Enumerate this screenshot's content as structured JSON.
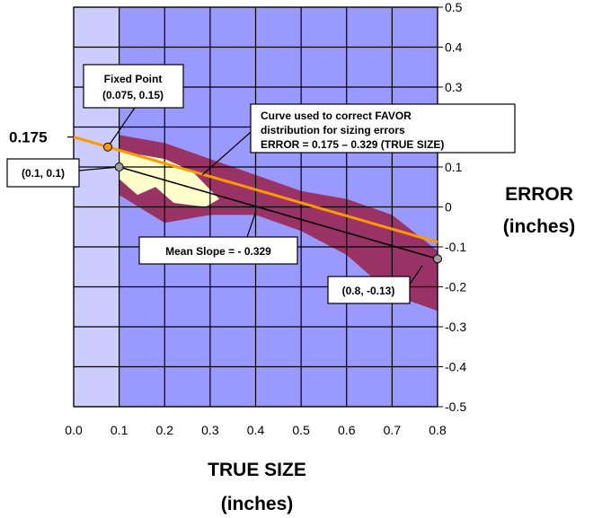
{
  "chart_data": {
    "type": "area",
    "xlabel": [
      "TRUE SIZE",
      "(inches)"
    ],
    "ylabel": [
      "ERROR",
      "(inches)"
    ],
    "xlim": [
      0,
      0.8
    ],
    "ylim": [
      -0.5,
      0.5
    ],
    "x_ticks": [
      "0.0",
      "0.1",
      "0.2",
      "0.3",
      "0.4",
      "0.5",
      "0.6",
      "0.7",
      "0.8"
    ],
    "y_ticks": [
      "-0.5",
      "-0.4",
      "-0.3",
      "-0.2",
      "-0.1",
      "0",
      "0.1",
      "0.2",
      "0.3",
      "0.4",
      "0.5"
    ],
    "grid": true,
    "colors": {
      "plot_background": "#9999ff",
      "left_band": "#ccccff",
      "outer_region": "#993366",
      "inner_region": "#ffffcc",
      "fit_line": "#ff9900",
      "mean_line": "#000000",
      "grid": "#000000"
    },
    "regions": {
      "outer_region": [
        [
          0.1,
          0.18
        ],
        [
          0.2,
          0.16
        ],
        [
          0.3,
          0.12
        ],
        [
          0.4,
          0.08
        ],
        [
          0.5,
          0.04
        ],
        [
          0.6,
          0.02
        ],
        [
          0.7,
          -0.02
        ],
        [
          0.8,
          -0.11
        ],
        [
          0.8,
          -0.26
        ],
        [
          0.7,
          -0.22
        ],
        [
          0.6,
          -0.12
        ],
        [
          0.5,
          -0.06
        ],
        [
          0.4,
          -0.02
        ],
        [
          0.3,
          -0.02
        ],
        [
          0.2,
          -0.04
        ],
        [
          0.1,
          0.03
        ]
      ],
      "inner_region": [
        [
          0.1,
          0.14
        ],
        [
          0.2,
          0.12
        ],
        [
          0.26,
          0.09
        ],
        [
          0.32,
          0.02
        ],
        [
          0.29,
          0.0
        ],
        [
          0.22,
          0.01
        ],
        [
          0.18,
          0.05
        ],
        [
          0.14,
          0.03
        ],
        [
          0.1,
          0.07
        ]
      ]
    },
    "series": [
      {
        "name": "Curve used to correct FAVOR distribution for sizing errors",
        "x": [
          0.0,
          0.8
        ],
        "y": [
          0.175,
          -0.0882
        ]
      },
      {
        "name": "Mean Slope = - 0.329",
        "x": [
          0.1,
          0.8
        ],
        "y": [
          0.1,
          -0.13
        ]
      }
    ],
    "points": [
      {
        "label": "Fixed Point\n(0.075, 0.15)",
        "x": 0.075,
        "y": 0.15,
        "color": "#ff9900"
      },
      {
        "label": "(0.1, 0.1)",
        "x": 0.1,
        "y": 0.1,
        "color": "#a0a0a0"
      },
      {
        "label": "(0.8, -0.13)",
        "x": 0.8,
        "y": -0.13,
        "color": "#a0a0a0"
      }
    ],
    "annotations": {
      "intercept_label": "0.175",
      "curve_box": [
        "Curve used to correct FAVOR",
        "distribution for sizing errors",
        "ERROR = 0.175 – 0.329 (TRUE SIZE)"
      ],
      "mean_slope": "Mean Slope = - 0.329",
      "fixed_point": [
        "Fixed Point",
        "(0.075, 0.15)"
      ],
      "point_a": "(0.1, 0.1)",
      "point_b": "(0.8, -0.13)"
    }
  }
}
